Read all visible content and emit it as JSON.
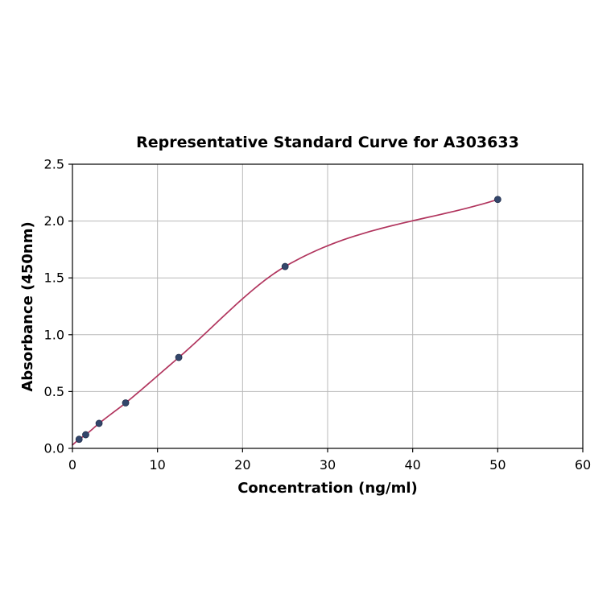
{
  "chart_data": {
    "type": "scatter",
    "title": "Representative Standard Curve for A303633",
    "xlabel": "Concentration (ng/ml)",
    "ylabel": "Absorbance (450nm)",
    "xlim": [
      0,
      60
    ],
    "ylim": [
      0,
      2.5
    ],
    "grid": true,
    "legend": null,
    "xticks": [
      {
        "v": 0,
        "label": "0"
      },
      {
        "v": 10,
        "label": "10"
      },
      {
        "v": 20,
        "label": "20"
      },
      {
        "v": 30,
        "label": "30"
      },
      {
        "v": 40,
        "label": "40"
      },
      {
        "v": 50,
        "label": "50"
      },
      {
        "v": 60,
        "label": "60"
      }
    ],
    "yticks": [
      {
        "v": 0.0,
        "label": "0.0"
      },
      {
        "v": 0.5,
        "label": "0.5"
      },
      {
        "v": 1.0,
        "label": "1.0"
      },
      {
        "v": 1.5,
        "label": "1.5"
      },
      {
        "v": 2.0,
        "label": "2.0"
      },
      {
        "v": 2.5,
        "label": "2.5"
      }
    ],
    "points": [
      {
        "x": 0.78,
        "y": 0.08
      },
      {
        "x": 1.56,
        "y": 0.12
      },
      {
        "x": 3.13,
        "y": 0.22
      },
      {
        "x": 6.25,
        "y": 0.4
      },
      {
        "x": 12.5,
        "y": 0.8
      },
      {
        "x": 25,
        "y": 1.6
      },
      {
        "x": 50,
        "y": 2.19
      }
    ],
    "fit": {
      "type": "4PL",
      "anchor": {
        "x": 0,
        "y": 0.03
      }
    },
    "colors": {
      "curve": "#b1355e",
      "points": "#33466b",
      "point_edge": "#22304d",
      "grid": "#b8b8b8",
      "axis": "#000000",
      "background": "#ffffff"
    }
  }
}
